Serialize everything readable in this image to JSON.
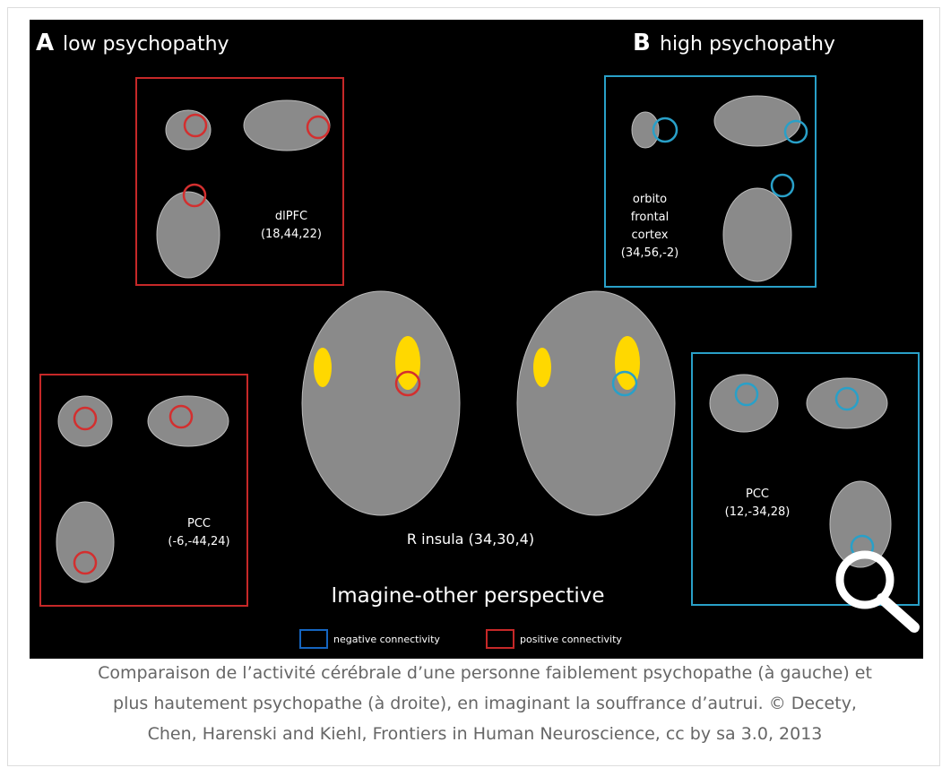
{
  "figure": {
    "panels": [
      {
        "letter": "A",
        "title": "low psychopathy"
      },
      {
        "letter": "B",
        "title": "high psychopathy"
      }
    ],
    "regions": [
      {
        "lines": [
          "dlPFC",
          "(18,44,22)"
        ]
      },
      {
        "lines": [
          "orbito",
          "frontal",
          "cortex",
          "(34,56,-2)"
        ]
      },
      {
        "lines": [
          "PCC",
          "(-6,-44,24)"
        ]
      },
      {
        "lines": [
          "PCC",
          "(12,-34,28)"
        ]
      }
    ],
    "center_label": "R insula (34,30,4)",
    "subtitle": "Imagine-other perspective",
    "legend": [
      "negative connectivity",
      "positive connectivity"
    ]
  },
  "caption": {
    "lines": [
      "Comparaison de l’activité cérébrale d’une personne faiblement psychopathe (à gauche) et",
      "plus hautement psychopathe (à droite), en imaginant la souffrance d’autrui. © Decety,",
      "Chen, Harenski and Kiehl, Frontiers in Human Neuroscience, cc by sa 3.0, 2013"
    ]
  }
}
